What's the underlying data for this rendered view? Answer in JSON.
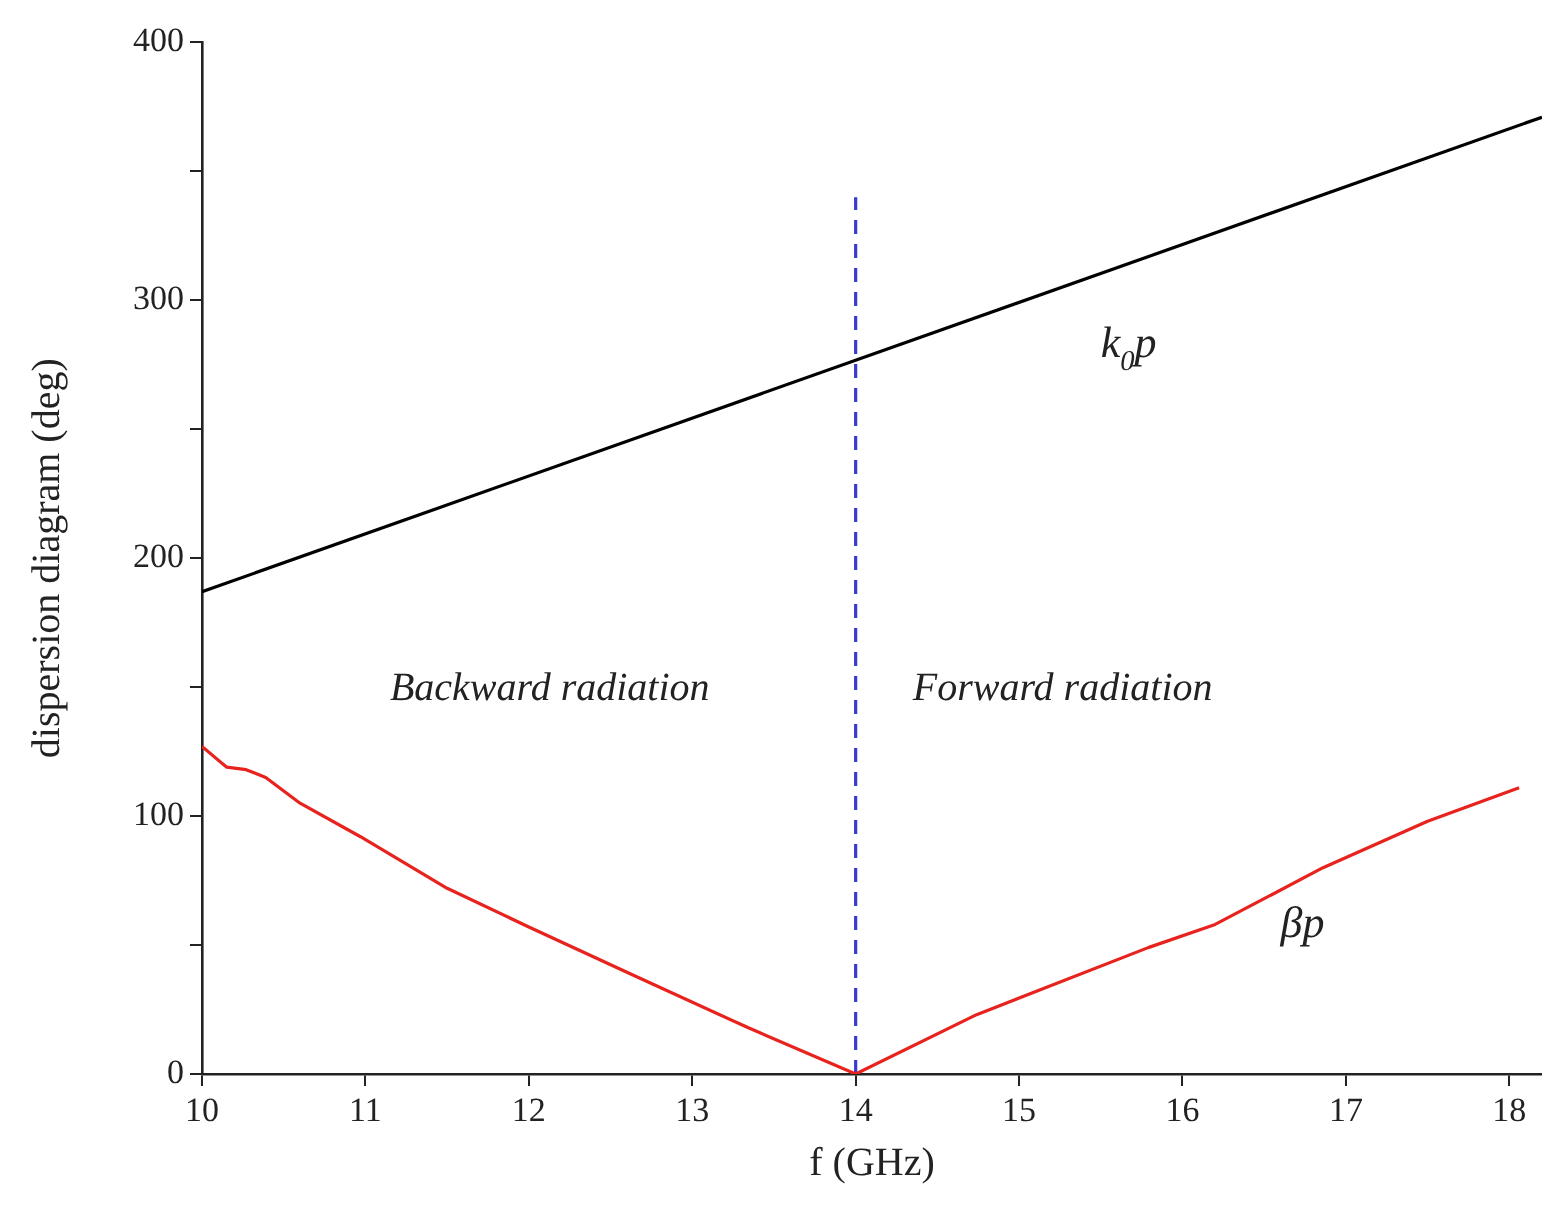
{
  "chart_data": {
    "type": "line",
    "xlabel": "f (GHz)",
    "ylabel": "dispersion diagram (deg)",
    "xlim": [
      10,
      18.2
    ],
    "xticks": [
      10,
      11,
      12,
      13,
      14,
      15,
      16,
      17,
      18
    ],
    "ylim": [
      0,
      400
    ],
    "yticks": [
      0,
      {
        "value": 50,
        "label": null
      },
      100,
      {
        "value": 150,
        "label": null
      },
      200,
      {
        "value": 250,
        "label": null
      },
      300,
      {
        "value": 350,
        "label": null
      },
      400
    ],
    "grid": false,
    "legend": false,
    "marker": "none",
    "series": [
      {
        "name": "k$_{0}$p",
        "color": "#000000",
        "x": [
          10,
          18.2
        ],
        "values": [
          187,
          371
        ]
      },
      {
        "name": "βp",
        "color": "#e8231e",
        "x": [
          10,
          10.15,
          10.27,
          10.39,
          10.6,
          10.97,
          11.5,
          12.0,
          12.65,
          13.34,
          14,
          14.74,
          15.79,
          16.2,
          16.86,
          17.5,
          18.06
        ],
        "values": [
          127,
          119,
          118,
          115,
          105,
          92,
          72,
          57,
          38,
          18,
          0,
          23,
          49,
          58,
          80,
          98,
          111
        ]
      },
      {
        "color": "#3a3ad0",
        "line_style": "dashed",
        "x": [
          14,
          14
        ],
        "values": [
          0,
          340
        ]
      }
    ],
    "annotations": [
      "Backward radiation",
      "Forward radiation"
    ]
  }
}
